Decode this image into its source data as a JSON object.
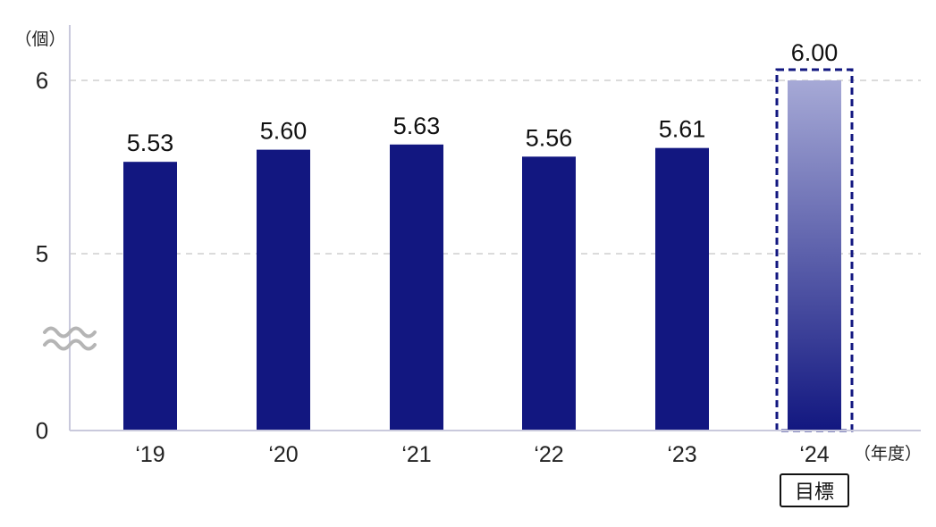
{
  "chart_data": {
    "type": "bar",
    "categories": [
      "‘19",
      "‘20",
      "‘21",
      "‘22",
      "‘23",
      "‘24"
    ],
    "values": [
      5.53,
      5.6,
      5.63,
      5.56,
      5.61,
      6.0
    ],
    "value_labels": [
      "5.53",
      "5.60",
      "5.63",
      "5.56",
      "5.61",
      "6.00"
    ],
    "y_unit": "（個）",
    "x_unit": "（年度）",
    "y_ticks": [
      "0",
      "5",
      "6"
    ],
    "axis_break": true,
    "ylim": [
      5,
      6
    ],
    "grid": true,
    "target_index": 5,
    "target_label": "目標",
    "colors": {
      "bar": "#121780",
      "target_top": "#a6a9d6",
      "target_bottom": "#121780",
      "grid": "#cfcfcf",
      "axis": "#c9c9dc",
      "break": "#b5b5b5"
    }
  }
}
